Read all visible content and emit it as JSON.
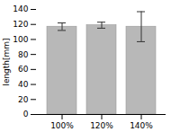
{
  "chart_data": {
    "type": "bar",
    "categories": [
      "100%",
      "120%",
      "140%"
    ],
    "values": [
      117,
      119,
      117
    ],
    "errors": [
      5,
      4,
      20
    ],
    "color": "#b8b8b8",
    "ylabel": "length[mm]",
    "ylim": [
      0,
      140
    ],
    "yticks": [
      0,
      20,
      40,
      60,
      80,
      100,
      120,
      140
    ],
    "grid": false
  }
}
